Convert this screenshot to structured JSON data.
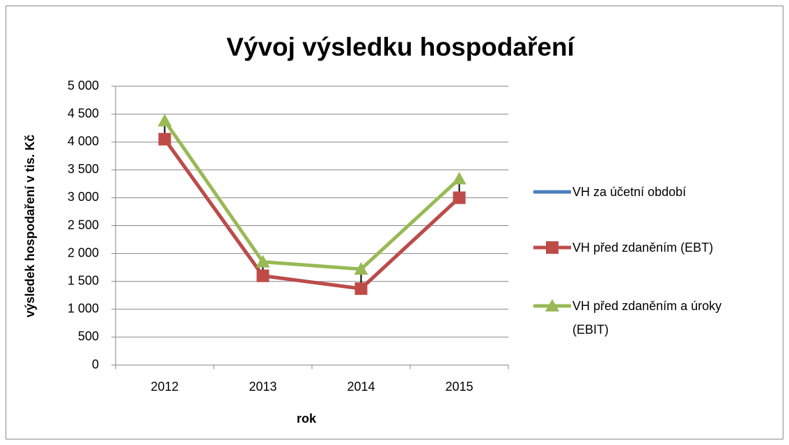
{
  "chart_data": {
    "type": "line",
    "title": "Vývoj výsledku hospodaření",
    "x_label": "rok",
    "y_label": "výsledek hospodaření v tis. Kč",
    "categories": [
      "2012",
      "2013",
      "2014",
      "2015"
    ],
    "series": [
      {
        "name": "VH za účetní období",
        "color": "#4a7ebb",
        "values": [
          4050,
          1600,
          1370,
          3000
        ]
      },
      {
        "name": "VH před zdaněním (EBT)",
        "color": "#be4b48",
        "values": [
          4050,
          1600,
          1370,
          3000
        ],
        "marker": "square"
      },
      {
        "name": "VH před zdaněním a úroky (EBIT)",
        "color": "#98b954",
        "values": [
          4380,
          1850,
          1720,
          3340
        ],
        "marker": "triangle"
      }
    ],
    "ylim": [
      0,
      5000
    ],
    "yticks": [
      0,
      {
        "value": 500,
        "label": "500"
      },
      {
        "value": 1000,
        "label": "1 000"
      },
      {
        "value": 1500,
        "label": "1 500"
      },
      {
        "value": 2000,
        "label": "2 000"
      },
      {
        "value": 2500,
        "label": "2 500"
      },
      {
        "value": 3000,
        "label": "3 000"
      },
      {
        "value": 3500,
        "label": "3 500"
      },
      {
        "value": 4000,
        "label": "4 000"
      },
      {
        "value": 4500,
        "label": "4 500"
      },
      {
        "value": 5000,
        "label": "5 000"
      }
    ],
    "grid": true,
    "legend": "right",
    "hi_lo_lines": true
  }
}
